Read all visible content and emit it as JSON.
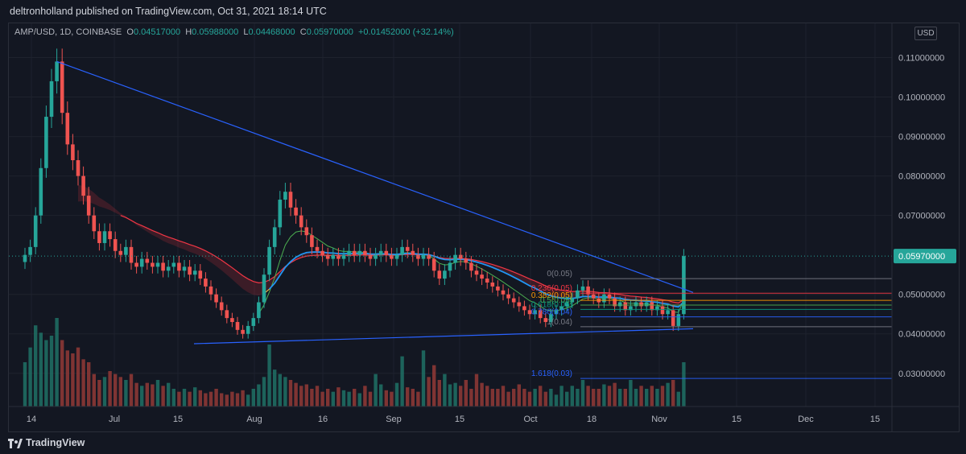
{
  "header": {
    "publisher_line": "deltronholland published on TradingView.com, Oct 31, 2021 18:14 UTC"
  },
  "legend": {
    "symbol": "AMP/USD, 1D, COINBASE",
    "open_label": "O",
    "open": "0.04517000",
    "high_label": "H",
    "high": "0.05988000",
    "low_label": "L",
    "low": "0.04468000",
    "close_label": "C",
    "close": "0.05970000",
    "change": "+0.01452000 (+32.14%)"
  },
  "currency_button": "USD",
  "footer": {
    "brand": "TradingView"
  },
  "colors": {
    "up": "#26a69a",
    "down": "#ef5350",
    "trendline": "#2962ff",
    "ema_red": "#f23645",
    "ema_blue": "#2196f3",
    "ema_yellow": "#ffd54f",
    "ema_green": "#4caf50",
    "price_tag": "#26a69a"
  },
  "chart_data": {
    "type": "candlestick",
    "symbol": "AMP/USD",
    "timeframe": "1D",
    "exchange": "COINBASE",
    "y_axis_ticks": [
      "0.11000000",
      "0.10000000",
      "0.09000000",
      "0.08000000",
      "0.07000000",
      "0.05000000",
      "0.04000000",
      "0.03000000"
    ],
    "ylim": [
      0.022,
      0.115
    ],
    "x_axis_ticks": [
      "14",
      "Jul",
      "15",
      "Aug",
      "16",
      "Sep",
      "15",
      "Oct",
      "18",
      "Nov",
      "15",
      "Dec",
      "15"
    ],
    "last_price": "0.05970000",
    "closes": [
      0.06,
      0.062,
      0.07,
      0.082,
      0.095,
      0.104,
      0.109,
      0.096,
      0.088,
      0.084,
      0.08,
      0.075,
      0.07,
      0.066,
      0.063,
      0.066,
      0.064,
      0.061,
      0.06,
      0.062,
      0.058,
      0.057,
      0.059,
      0.058,
      0.057,
      0.058,
      0.056,
      0.057,
      0.058,
      0.056,
      0.057,
      0.055,
      0.056,
      0.054,
      0.052,
      0.05,
      0.048,
      0.046,
      0.044,
      0.043,
      0.041,
      0.04,
      0.042,
      0.044,
      0.048,
      0.055,
      0.062,
      0.067,
      0.074,
      0.076,
      0.072,
      0.07,
      0.067,
      0.065,
      0.062,
      0.061,
      0.06,
      0.059,
      0.06,
      0.059,
      0.06,
      0.061,
      0.06,
      0.061,
      0.06,
      0.059,
      0.06,
      0.061,
      0.06,
      0.059,
      0.06,
      0.062,
      0.061,
      0.06,
      0.059,
      0.06,
      0.059,
      0.056,
      0.054,
      0.056,
      0.058,
      0.06,
      0.059,
      0.058,
      0.056,
      0.055,
      0.054,
      0.053,
      0.052,
      0.051,
      0.05,
      0.049,
      0.048,
      0.047,
      0.046,
      0.045,
      0.046,
      0.044,
      0.043,
      0.045,
      0.046,
      0.047,
      0.048,
      0.049,
      0.051,
      0.052,
      0.05,
      0.049,
      0.048,
      0.05,
      0.049,
      0.047,
      0.048,
      0.046,
      0.047,
      0.048,
      0.047,
      0.048,
      0.046,
      0.047,
      0.045,
      0.046,
      0.042,
      0.045,
      0.0597
    ],
    "volumes": [
      30,
      40,
      55,
      50,
      45,
      48,
      60,
      45,
      38,
      36,
      40,
      32,
      30,
      22,
      18,
      20,
      24,
      22,
      20,
      18,
      22,
      16,
      14,
      16,
      15,
      18,
      14,
      16,
      12,
      10,
      12,
      10,
      13,
      11,
      9,
      10,
      12,
      9,
      8,
      10,
      9,
      11,
      8,
      12,
      15,
      20,
      42,
      25,
      22,
      20,
      18,
      16,
      14,
      15,
      12,
      14,
      10,
      12,
      10,
      13,
      11,
      10,
      12,
      9,
      14,
      10,
      22,
      15,
      11,
      10,
      16,
      34,
      13,
      12,
      10,
      38,
      20,
      28,
      18,
      22,
      15,
      16,
      14,
      18,
      12,
      22,
      16,
      14,
      12,
      12,
      14,
      10,
      12,
      15,
      12,
      10,
      12,
      14,
      10,
      12,
      8,
      14,
      10,
      14,
      12,
      18,
      14,
      12,
      12,
      15,
      14,
      16,
      12,
      12,
      18,
      12,
      14,
      12,
      14,
      12,
      14,
      16,
      18,
      10,
      30
    ],
    "trendline_label": "",
    "fib_levels": [
      {
        "label": "0(0.05)",
        "price": 0.054
      },
      {
        "label": "0.236(0.05)",
        "price": 0.0503
      },
      {
        "label": "0.382(0.05)",
        "price": 0.0485
      },
      {
        "label": "0.5(0.05)",
        "price": 0.0473
      },
      {
        "label": "0.618(0.05)",
        "price": 0.0462
      },
      {
        "label": "0.786(0.04)",
        "price": 0.0443
      },
      {
        "label": "1(0.04)",
        "price": 0.0418
      },
      {
        "label": "1.618(0.03)",
        "price": 0.0287
      }
    ],
    "grid": true,
    "legend_position": "top-left"
  }
}
